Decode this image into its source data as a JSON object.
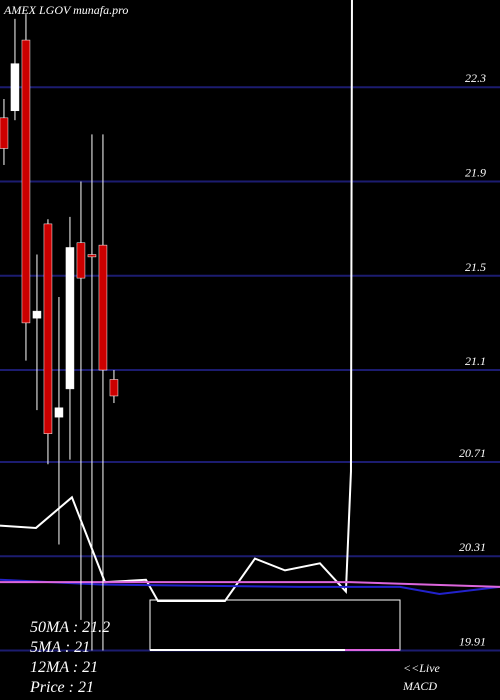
{
  "chart_data": {
    "type": "candlestick",
    "title": "AMEX LGOV munafa.pro",
    "x": [
      0,
      1,
      2,
      3,
      4,
      5,
      6,
      7,
      8,
      9,
      10
    ],
    "open": [
      22.17,
      22.2,
      22.5,
      21.32,
      21.72,
      20.9,
      21.02,
      21.64,
      21.59,
      21.63,
      21.06
    ],
    "high": [
      22.25,
      22.59,
      22.61,
      21.59,
      21.74,
      21.41,
      21.75,
      21.9,
      22.1,
      22.1,
      21.1
    ],
    "low": [
      21.97,
      22.16,
      21.14,
      20.93,
      20.7,
      20.36,
      20.72,
      20.04,
      19.91,
      19.91,
      20.96
    ],
    "close": [
      22.04,
      22.4,
      21.3,
      21.35,
      20.83,
      20.94,
      21.62,
      21.49,
      21.58,
      21.1,
      20.99
    ],
    "up_color": "#ffffff",
    "down_color": "#cc0000",
    "lines": [
      {
        "color": "#ffffff",
        "x": [
          -0.36,
          2.91,
          6.18,
          9.18,
          12.91,
          14,
          20.09,
          22.82,
          25.55,
          28.73,
          31.09,
          31.55,
          31.64
        ],
        "values": [
          20.44,
          20.43,
          20.56,
          20.2,
          20.21,
          20.12,
          20.12,
          20.3,
          20.25,
          20.28,
          20.16,
          20.67,
          22.67
        ]
      },
      {
        "color": "#2222cc",
        "x": [
          -0.36,
          8.73,
          26.9,
          36,
          39.6,
          45.1
        ],
        "values": [
          20.21,
          20.19,
          20.18,
          20.18,
          20.15,
          20.18
        ]
      },
      {
        "color": "#dd66dd",
        "x": [
          -0.36,
          31.45,
          45.1
        ],
        "values": [
          20.2,
          20.2,
          20.18
        ]
      }
    ],
    "xlim": [
      -0.36,
      45.1
    ],
    "ylim": [
      19.7,
      22.67
    ],
    "yticks": [
      22.3,
      21.9,
      21.5,
      21.1,
      20.71,
      20.31,
      19.91
    ],
    "grid": true,
    "grid_color": "#1c1c70",
    "stats": [
      "50MA : 21.2",
      "5MA : 21",
      "12MA : 21",
      "Price  : 21"
    ],
    "live": "<<Live",
    "macd": "MACD"
  }
}
